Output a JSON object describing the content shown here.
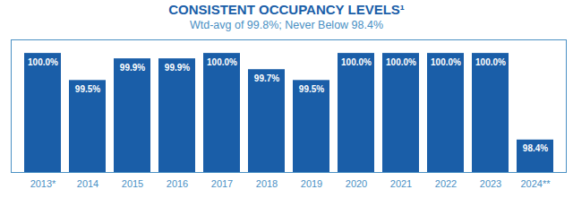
{
  "chart_data": {
    "type": "bar",
    "title": "CONSISTENT OCCUPANCY LEVELS¹",
    "subtitle": "Wtd-avg of 99.8%; Never Below 98.4%",
    "categories": [
      "2013*",
      "2014",
      "2015",
      "2016",
      "2017",
      "2018",
      "2019",
      "2020",
      "2021",
      "2022",
      "2023",
      "2024**"
    ],
    "values": [
      100.0,
      99.5,
      99.9,
      99.9,
      100.0,
      99.7,
      99.5,
      100.0,
      100.0,
      100.0,
      100.0,
      98.4
    ],
    "value_labels": [
      "100.0%",
      "99.5%",
      "99.9%",
      "99.9%",
      "100.0%",
      "99.7%",
      "99.5%",
      "100.0%",
      "100.0%",
      "100.0%",
      "100.0%",
      "98.4%"
    ],
    "color": "#1a5ea8",
    "ylim": [
      97.8,
      100.25
    ],
    "data_labels": true,
    "tick_labels": "x"
  }
}
